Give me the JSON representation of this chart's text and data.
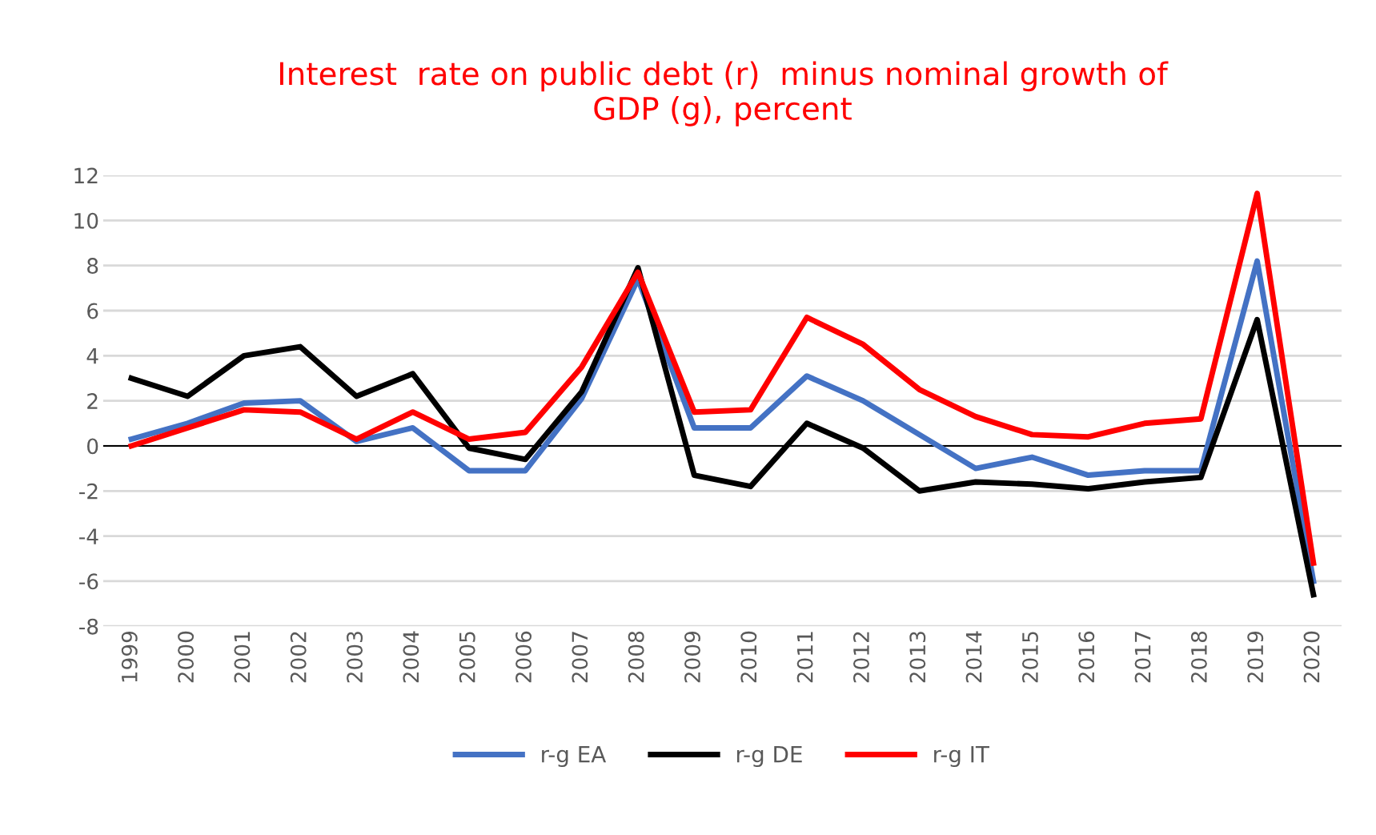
{
  "chart_data": {
    "type": "line",
    "title": "Interest  rate on public debt (r)  minus nominal growth of\nGDP (g), percent",
    "categories": [
      "1999",
      "2000",
      "2001",
      "2002",
      "2003",
      "2004",
      "2005",
      "2006",
      "2007",
      "2008",
      "2009",
      "2010",
      "2011",
      "2012",
      "2013",
      "2014",
      "2015",
      "2016",
      "2017",
      "2018",
      "2019",
      "2020"
    ],
    "series": [
      {
        "name": "r-g EA",
        "color": "#4472c4",
        "values": [
          0.3,
          1.0,
          1.9,
          2.0,
          0.2,
          0.8,
          -1.1,
          -1.1,
          2.1,
          7.4,
          0.8,
          0.8,
          3.1,
          2.0,
          0.5,
          -1.0,
          -0.5,
          -1.3,
          -1.1,
          -1.1,
          8.2,
          -6.0
        ]
      },
      {
        "name": "r-g DE",
        "color": "#000000",
        "values": [
          3.0,
          2.2,
          4.0,
          4.4,
          2.2,
          3.2,
          -0.1,
          -0.6,
          2.4,
          7.9,
          -1.3,
          -1.8,
          1.0,
          -0.1,
          -2.0,
          -1.6,
          -1.7,
          -1.9,
          -1.6,
          -1.4,
          5.6,
          -6.6
        ]
      },
      {
        "name": "r-g IT",
        "color": "#ff0000",
        "values": [
          0.0,
          0.8,
          1.6,
          1.5,
          0.3,
          1.5,
          0.3,
          0.6,
          3.5,
          7.7,
          1.5,
          1.6,
          5.7,
          4.5,
          2.5,
          1.3,
          0.5,
          0.4,
          1.0,
          1.2,
          11.2,
          -5.2
        ]
      }
    ],
    "ylim": [
      -8,
      12
    ],
    "yticks": [
      -8,
      -6,
      -4,
      -2,
      0,
      2,
      4,
      6,
      8,
      10,
      12
    ],
    "grid": "y",
    "legend": "bottom",
    "marker": "none",
    "line_style": "solid",
    "ref_lines": [
      {
        "axis": "y",
        "value": 0,
        "color": "#000000"
      }
    ]
  }
}
